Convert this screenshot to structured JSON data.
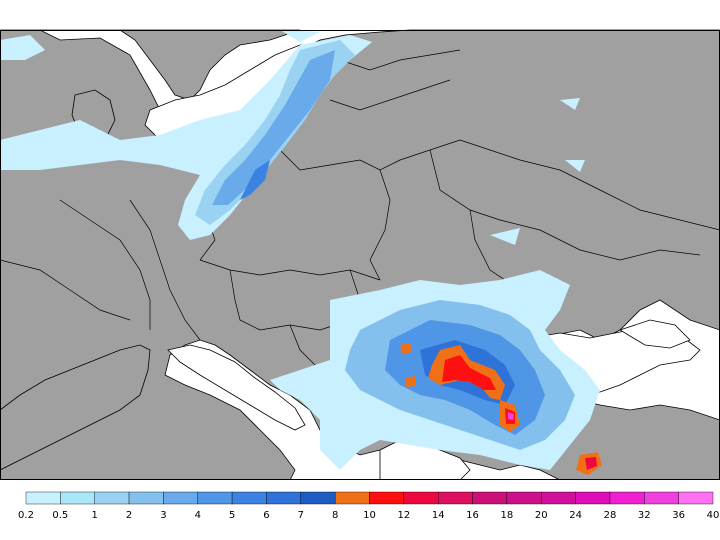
{
  "map": {
    "land_color": "#a0a0a0",
    "sea_color": "#ffffff",
    "border_color": "#000000"
  },
  "legend": {
    "ticks": [
      "0.2",
      "0.5",
      "1",
      "2",
      "3",
      "4",
      "5",
      "6",
      "7",
      "8",
      "10",
      "12",
      "14",
      "16",
      "18",
      "20",
      "24",
      "28",
      "32",
      "36",
      "40"
    ],
    "colors": [
      "#c8f0ff",
      "#a8e6f8",
      "#9ad2f2",
      "#84c0ee",
      "#68aaea",
      "#4f96e6",
      "#3c82e2",
      "#2f72d8",
      "#1e5cc4",
      "#f07018",
      "#ff1010",
      "#ee0840",
      "#dd1060",
      "#cc1078",
      "#cc108c",
      "#d0109c",
      "#e010b8",
      "#f020d0",
      "#f040e0",
      "#ff70f0"
    ]
  }
}
